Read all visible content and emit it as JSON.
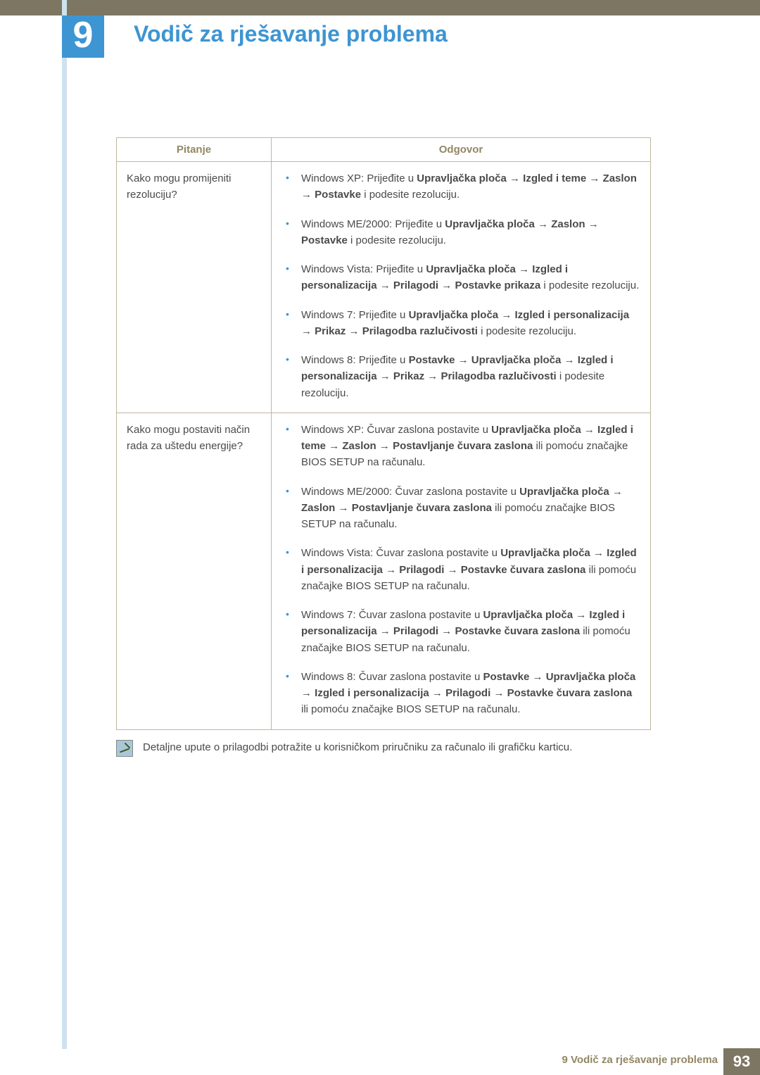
{
  "colors": {
    "accent_blue": "#3d95d2",
    "header_bar": "#7d7662",
    "left_stripe": "#cde1ee",
    "table_border": "#bfb79d",
    "header_text": "#928763",
    "body_text": "#4a4a4a"
  },
  "chapter": {
    "number": "9",
    "title": "Vodič za rješavanje problema"
  },
  "table": {
    "headers": {
      "question": "Pitanje",
      "answer": "Odgovor"
    },
    "rows": [
      {
        "question": "Kako mogu promijeniti rezoluciju?",
        "answers": [
          "Windows XP: Prijeđite u <b>Upravljačka ploča</b> <span class='arrow'>→</span> <b>Izgled i teme</b> <span class='arrow'>→</span> <b>Zaslon</b> <span class='arrow'>→</span> <b>Postavke</b> i podesite rezoluciju.",
          "Windows ME/2000: Prijeđite u <b>Upravljačka ploča</b> <span class='arrow'>→</span> <b>Zaslon</b> <span class='arrow'>→</span> <b>Postavke</b> i podesite rezoluciju.",
          "Windows Vista: Prijeđite u <b>Upravljačka ploča</b> <span class='arrow'>→</span> <b>Izgled i personalizacija</b> <span class='arrow'>→</span> <b>Prilagodi</b> <span class='arrow'>→</span> <b>Postavke prikaza</b> i podesite rezoluciju.",
          "Windows 7: Prijeđite u <b>Upravljačka ploča</b> <span class='arrow'>→</span> <b>Izgled i personalizacija</b> <span class='arrow'>→</span> <b>Prikaz</b> <span class='arrow'>→</span> <b>Prilagodba razlučivosti</b> i podesite rezoluciju.",
          "Windows 8: Prijeđite u <b>Postavke</b> <span class='arrow'>→</span> <b>Upravljačka ploča</b> <span class='arrow'>→</span> <b>Izgled i personalizacija</b> <span class='arrow'>→</span> <b>Prikaz</b> <span class='arrow'>→</span> <b>Prilagodba razlučivosti</b> i podesite rezoluciju."
        ]
      },
      {
        "question": "Kako mogu postaviti način rada za uštedu energije?",
        "answers": [
          "Windows XP: Čuvar zaslona postavite u <b>Upravljačka ploča</b> <span class='arrow'>→</span> <b>Izgled i teme</b> <span class='arrow'>→</span> <b>Zaslon</b> <span class='arrow'>→</span> <b>Postavljanje čuvara zaslona</b> ili pomoću značajke BIOS SETUP na računalu.",
          "Windows ME/2000: Čuvar zaslona postavite u <b>Upravljačka ploča</b> <span class='arrow'>→</span> <b>Zaslon</b> <span class='arrow'>→</span> <b>Postavljanje čuvara zaslona</b> ili pomoću značajke BIOS SETUP na računalu.",
          "Windows Vista: Čuvar zaslona postavite u <b>Upravljačka ploča</b> <span class='arrow'>→</span> <b>Izgled i personalizacija</b> <span class='arrow'>→</span> <b>Prilagodi</b> <span class='arrow'>→</span> <b>Postavke čuvara zaslona</b> ili pomoću značajke BIOS SETUP na računalu.",
          "Windows 7: Čuvar zaslona postavite u <b>Upravljačka ploča</b> <span class='arrow'>→</span> <b>Izgled i personalizacija</b> <span class='arrow'>→</span> <b>Prilagodi</b> <span class='arrow'>→</span> <b>Postavke čuvara zaslona</b> ili pomoću značajke BIOS SETUP na računalu.",
          "Windows 8: Čuvar zaslona postavite u <b>Postavke</b> <span class='arrow'>→</span> <b>Upravljačka ploča</b> <span class='arrow'>→</span> <b>Izgled i personalizacija</b> <span class='arrow'>→</span> <b>Prilagodi</b> <span class='arrow'>→</span> <b>Postavke čuvara zaslona</b> ili pomoću značajke BIOS SETUP na računalu."
        ]
      }
    ]
  },
  "note": "Detaljne upute o prilagodbi potražite u korisničkom priručniku za računalo ili grafičku karticu.",
  "footer": {
    "text": "9 Vodič za rješavanje problema",
    "page": "93"
  }
}
